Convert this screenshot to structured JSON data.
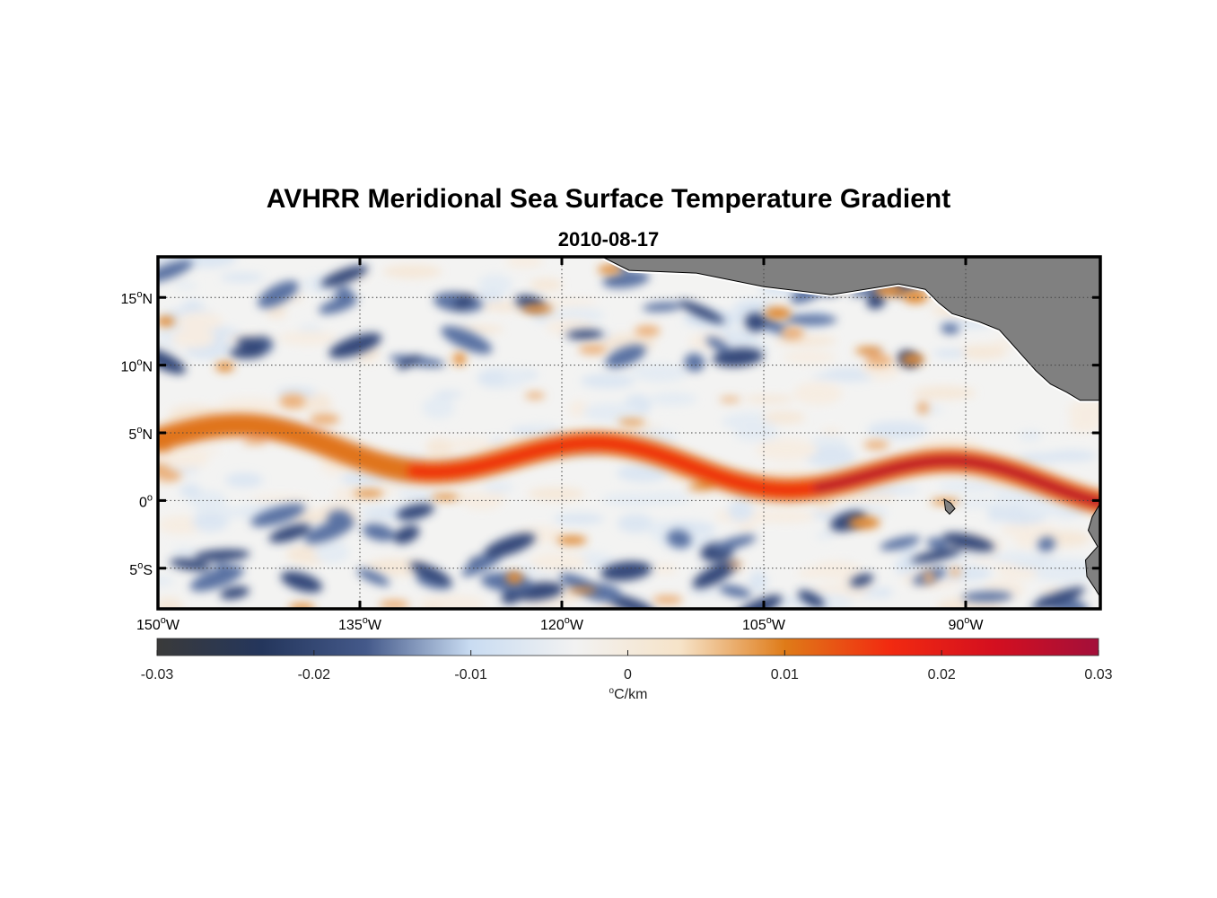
{
  "title": "AVHRR Meridional Sea Surface Temperature Gradient",
  "subtitle": "2010-08-17",
  "map": {
    "lon_range": [
      -150,
      -80
    ],
    "lat_range": [
      -8,
      18
    ],
    "lat_ticks": [
      {
        "value": 15,
        "num": "15",
        "sup": "o",
        "hemi": "N"
      },
      {
        "value": 10,
        "num": "10",
        "sup": "o",
        "hemi": "N"
      },
      {
        "value": 5,
        "num": "5",
        "sup": "o",
        "hemi": "N"
      },
      {
        "value": 0,
        "num": "0",
        "sup": "o",
        "hemi": ""
      },
      {
        "value": -5,
        "num": "5",
        "sup": "o",
        "hemi": "S"
      }
    ],
    "lon_ticks": [
      {
        "value": -150,
        "num": "150",
        "sup": "o",
        "hemi": "W"
      },
      {
        "value": -135,
        "num": "135",
        "sup": "o",
        "hemi": "W"
      },
      {
        "value": -120,
        "num": "120",
        "sup": "o",
        "hemi": "W"
      },
      {
        "value": -105,
        "num": "105",
        "sup": "o",
        "hemi": "W"
      },
      {
        "value": -90,
        "num": "90",
        "sup": "o",
        "hemi": "W"
      }
    ],
    "land_color": "#808080"
  },
  "colorbar": {
    "range": [
      -0.03,
      0.03
    ],
    "ticks": [
      "-0.03",
      "-0.02",
      "-0.01",
      "0",
      "0.01",
      "0.02",
      "0.03"
    ],
    "tick_values": [
      -0.03,
      -0.02,
      -0.01,
      0,
      0.01,
      0.02,
      0.03
    ],
    "unit_sup": "o",
    "unit_rest": "C/km",
    "colors": [
      "#3a3a3a",
      "#24365c",
      "#44598a",
      "#c9dcf2",
      "#f2f2f2",
      "#f6e3c8",
      "#df7b18",
      "#f22a10",
      "#d40f1f",
      "#a30f3a"
    ]
  }
}
